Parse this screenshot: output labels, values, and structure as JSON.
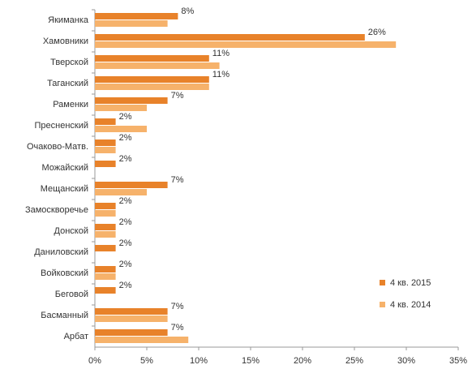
{
  "chart_data": {
    "type": "hbar",
    "categories": [
      "Якиманка",
      "Хамовники",
      "Тверской",
      "Таганский",
      "Раменки",
      "Пресненский",
      "Очаково-Матв.",
      "Можайский",
      "Мещанский",
      "Замоскворечье",
      "Донской",
      "Даниловский",
      "Войковский",
      "Беговой",
      "Басманный",
      "Арбат"
    ],
    "series": [
      {
        "name": "4 кв. 2015",
        "color": "#e8822a",
        "values": [
          8,
          26,
          11,
          11,
          7,
          2,
          2,
          2,
          7,
          2,
          2,
          2,
          2,
          2,
          7,
          7
        ],
        "value_labels": [
          "8%",
          "26%",
          "11%",
          "11%",
          "7%",
          "2%",
          "2%",
          "2%",
          "7%",
          "2%",
          "2%",
          "2%",
          "2%",
          "2%",
          "7%",
          "7%"
        ]
      },
      {
        "name": "4 кв. 2014",
        "color": "#f6b26b",
        "values": [
          7,
          29,
          12,
          11,
          5,
          5,
          2,
          null,
          5,
          2,
          2,
          null,
          2,
          null,
          7,
          9
        ]
      }
    ],
    "xlim": [
      0,
      35
    ],
    "xticks": [
      {
        "value": 0,
        "label": "0%"
      },
      {
        "value": 5,
        "label": "5%"
      },
      {
        "value": 10,
        "label": "10%"
      },
      {
        "value": 15,
        "label": "15%"
      },
      {
        "value": 20,
        "label": "20%"
      },
      {
        "value": 25,
        "label": "25%"
      },
      {
        "value": 30,
        "label": "30%"
      },
      {
        "value": 35,
        "label": "35%"
      }
    ],
    "legend": "right"
  }
}
